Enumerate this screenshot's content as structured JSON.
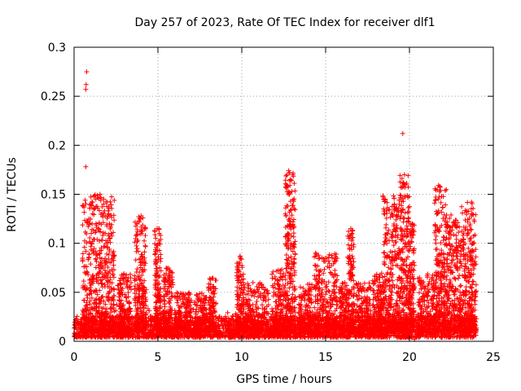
{
  "chart_data": {
    "type": "scatter",
    "title": "Day 257 of 2023, Rate Of TEC Index for receiver dlf1",
    "xlabel": "GPS time / hours",
    "ylabel": "ROTI / TECUs",
    "xlim": [
      0,
      25
    ],
    "ylim": [
      0,
      0.3
    ],
    "x_ticks": [
      "0",
      "5",
      "10",
      "15",
      "20",
      "25"
    ],
    "y_ticks": [
      "0",
      "0.05",
      "0.1",
      "0.15",
      "0.2",
      "0.25",
      "0.3"
    ],
    "grid": true,
    "marker": "+",
    "series_color": "#ff0000",
    "baseline": {
      "x_range": [
        0.0,
        24.0
      ],
      "typical": 0.015,
      "spread": 0.022
    },
    "activity_segments": [
      {
        "x": [
          0.5,
          2.4
        ],
        "peak": 0.15
      },
      {
        "x": [
          2.6,
          3.4
        ],
        "peak": 0.07
      },
      {
        "x": [
          3.6,
          4.3
        ],
        "peak": 0.128
      },
      {
        "x": [
          4.8,
          5.2
        ],
        "peak": 0.115
      },
      {
        "x": [
          5.3,
          5.9
        ],
        "peak": 0.075
      },
      {
        "x": [
          6.0,
          7.0
        ],
        "peak": 0.05
      },
      {
        "x": [
          7.1,
          7.9
        ],
        "peak": 0.05
      },
      {
        "x": [
          8.0,
          8.5
        ],
        "peak": 0.065
      },
      {
        "x": [
          9.7,
          10.1
        ],
        "peak": 0.087
      },
      {
        "x": [
          10.1,
          11.6
        ],
        "peak": 0.06
      },
      {
        "x": [
          11.8,
          12.6
        ],
        "peak": 0.075
      },
      {
        "x": [
          12.6,
          13.2
        ],
        "peak": 0.175
      },
      {
        "x": [
          13.4,
          14.2
        ],
        "peak": 0.06
      },
      {
        "x": [
          14.3,
          15.7
        ],
        "peak": 0.09
      },
      {
        "x": [
          15.8,
          16.3
        ],
        "peak": 0.06
      },
      {
        "x": [
          16.3,
          16.7
        ],
        "peak": 0.115
      },
      {
        "x": [
          16.8,
          17.7
        ],
        "peak": 0.06
      },
      {
        "x": [
          17.8,
          18.4
        ],
        "peak": 0.07
      },
      {
        "x": [
          18.4,
          19.4
        ],
        "peak": 0.15
      },
      {
        "x": [
          19.4,
          20.0
        ],
        "peak": 0.17
      },
      {
        "x": [
          20.0,
          20.3
        ],
        "peak": 0.12
      },
      {
        "x": [
          20.5,
          21.5
        ],
        "peak": 0.07
      },
      {
        "x": [
          21.5,
          22.2
        ],
        "peak": 0.16
      },
      {
        "x": [
          22.2,
          23.0
        ],
        "peak": 0.13
      },
      {
        "x": [
          23.0,
          24.0
        ],
        "peak": 0.142
      }
    ],
    "notable_points": [
      {
        "x": 0.75,
        "y": 0.275
      },
      {
        "x": 0.72,
        "y": 0.262
      },
      {
        "x": 0.7,
        "y": 0.257
      },
      {
        "x": 0.7,
        "y": 0.178
      },
      {
        "x": 19.6,
        "y": 0.212
      },
      {
        "x": 19.7,
        "y": 0.17
      },
      {
        "x": 19.65,
        "y": 0.162
      },
      {
        "x": 12.8,
        "y": 0.174
      },
      {
        "x": 12.85,
        "y": 0.172
      },
      {
        "x": 12.9,
        "y": 0.165
      },
      {
        "x": 12.85,
        "y": 0.152
      },
      {
        "x": 12.75,
        "y": 0.138
      },
      {
        "x": 12.8,
        "y": 0.124
      },
      {
        "x": 12.75,
        "y": 0.105
      },
      {
        "x": 12.8,
        "y": 0.085
      },
      {
        "x": 4.0,
        "y": 0.128
      },
      {
        "x": 4.1,
        "y": 0.126
      },
      {
        "x": 1.55,
        "y": 0.15
      },
      {
        "x": 1.3,
        "y": 0.145
      },
      {
        "x": 21.8,
        "y": 0.158
      },
      {
        "x": 21.85,
        "y": 0.154
      },
      {
        "x": 23.7,
        "y": 0.142
      },
      {
        "x": 23.7,
        "y": 0.128
      },
      {
        "x": 4.95,
        "y": 0.115
      },
      {
        "x": 16.5,
        "y": 0.115
      },
      {
        "x": 9.9,
        "y": 0.087
      },
      {
        "x": 14.4,
        "y": 0.09
      },
      {
        "x": 20.3,
        "y": 0.002
      }
    ]
  }
}
